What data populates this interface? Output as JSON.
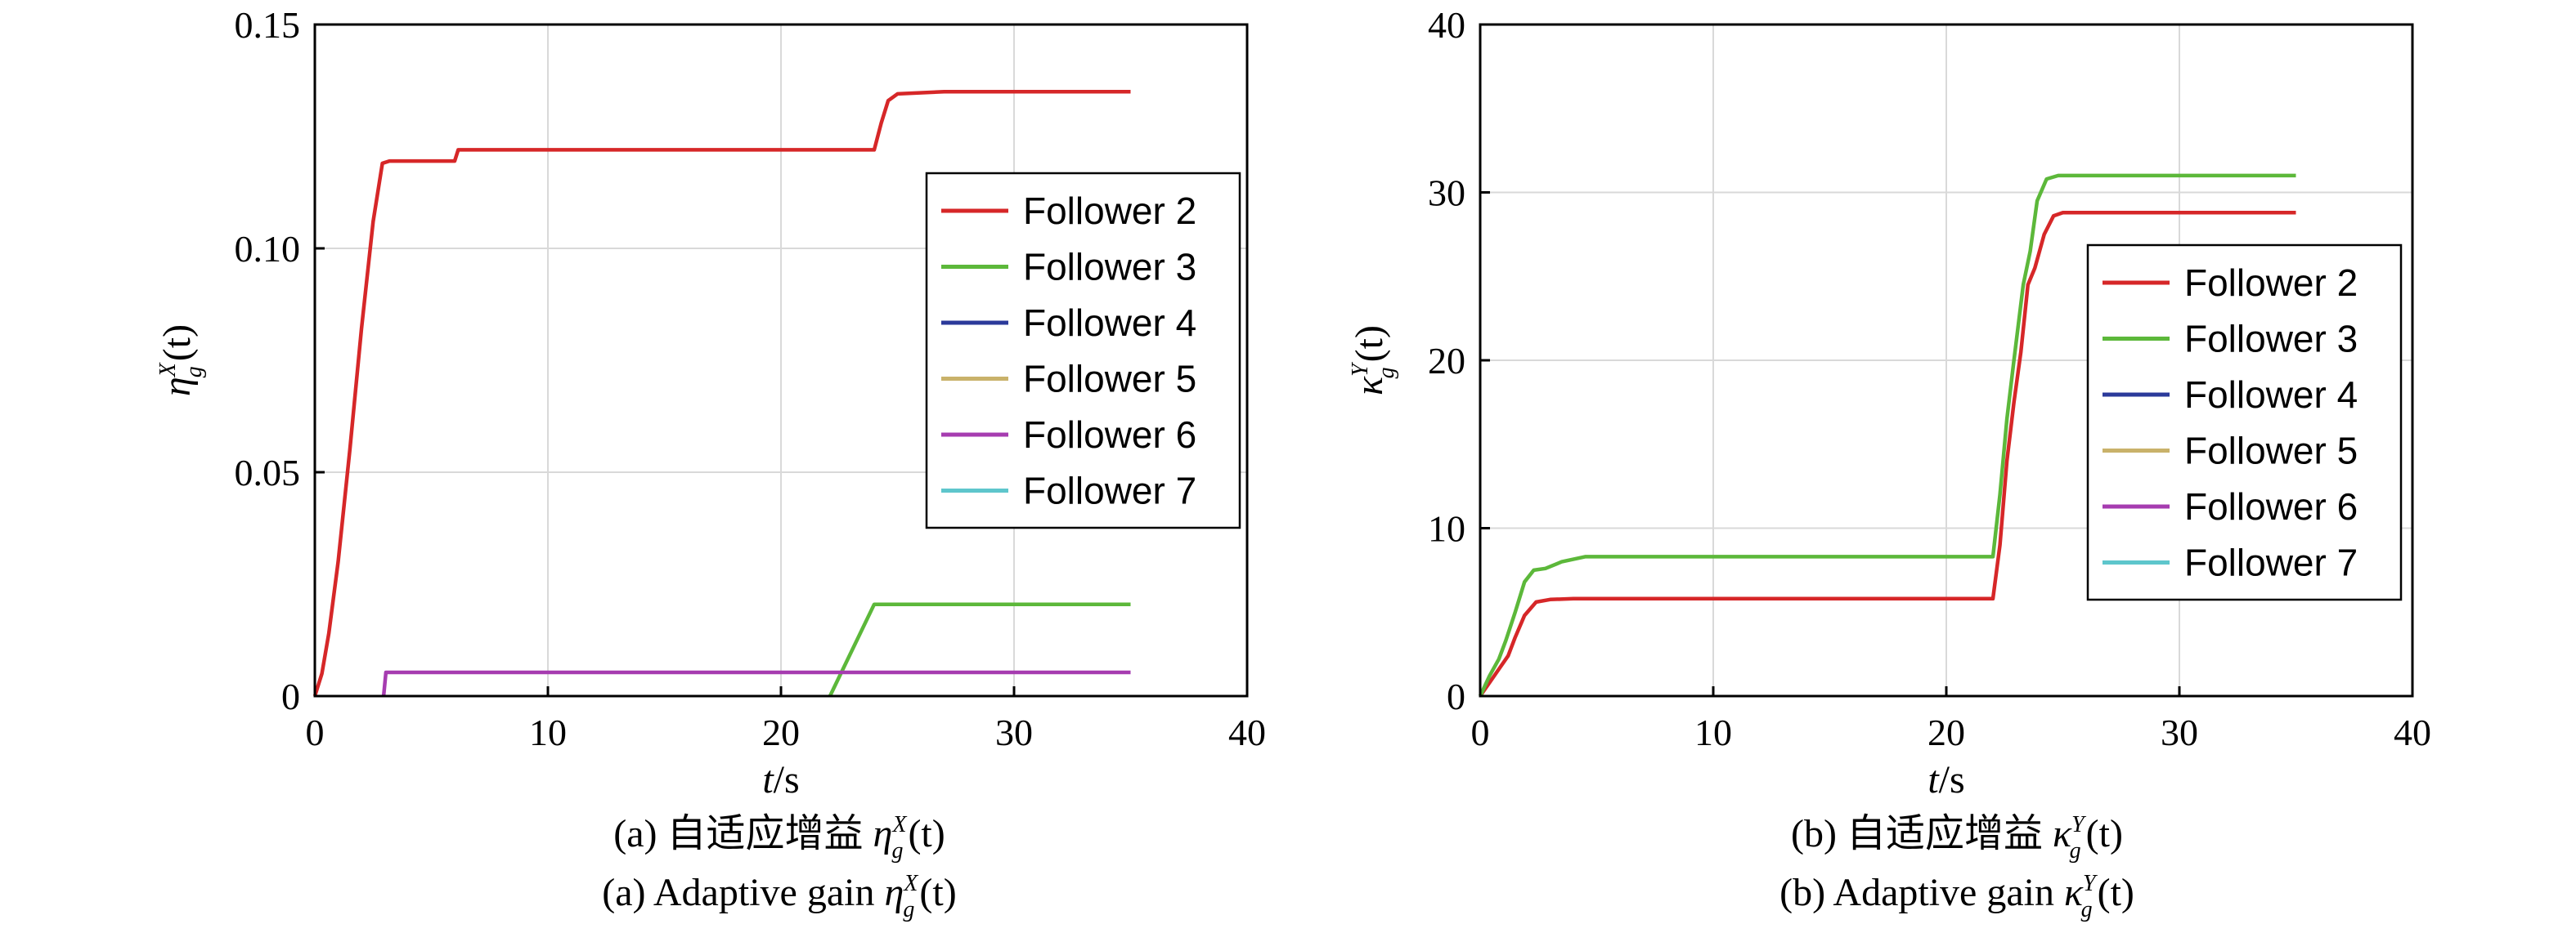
{
  "colors": {
    "follower2": "#d62728",
    "follower3": "#5cb83a",
    "follower4": "#2b3a9a",
    "follower5": "#c9b26a",
    "follower6": "#a63cb0",
    "follower7": "#5ec6cc"
  },
  "xlabel": {
    "var": "t",
    "unit": "/s"
  },
  "chart_data": [
    {
      "type": "line",
      "panel": "a",
      "ylabel": {
        "sym": "η",
        "sup": "X",
        "sub": "g",
        "arg": "(t)"
      },
      "caption_cn": {
        "prefix": "(a) 自适应增益 ",
        "sym": "η",
        "sup": "X",
        "sub": "g",
        "arg": "(t)"
      },
      "caption_en": {
        "prefix": "(a) Adaptive gain ",
        "sym": "η",
        "sup": "X",
        "sub": "g",
        "arg": "(t)"
      },
      "xlim": [
        0,
        40
      ],
      "ylim": [
        0,
        0.15
      ],
      "xticks": [
        "0",
        "10",
        "20",
        "30",
        "40"
      ],
      "yticks": [
        "0",
        "0.05",
        "0.10",
        "0.15"
      ],
      "ytick_values": [
        0,
        0.05,
        0.1,
        0.15
      ],
      "grid": true,
      "legend_position": "right",
      "series": [
        {
          "name": "Follower 2",
          "color_key": "follower2",
          "points": [
            [
              0,
              0
            ],
            [
              0.3,
              0.005
            ],
            [
              0.6,
              0.014
            ],
            [
              1,
              0.03
            ],
            [
              1.5,
              0.055
            ],
            [
              2,
              0.082
            ],
            [
              2.5,
              0.106
            ],
            [
              2.9,
              0.119
            ],
            [
              3.2,
              0.1195
            ],
            [
              6,
              0.1195
            ],
            [
              6.15,
              0.122
            ],
            [
              24,
              0.122
            ],
            [
              24.3,
              0.128
            ],
            [
              24.6,
              0.133
            ],
            [
              25,
              0.1345
            ],
            [
              27,
              0.135
            ],
            [
              35,
              0.135
            ]
          ]
        },
        {
          "name": "Follower 3",
          "color_key": "follower3",
          "points": [
            [
              22.1,
              0
            ],
            [
              24,
              0.0205
            ],
            [
              35,
              0.0205
            ]
          ]
        },
        {
          "name": "Follower 4",
          "color_key": "follower4",
          "points": []
        },
        {
          "name": "Follower 5",
          "color_key": "follower5",
          "points": []
        },
        {
          "name": "Follower 6",
          "color_key": "follower6",
          "points": [
            [
              2.95,
              0
            ],
            [
              3.05,
              0.0053
            ],
            [
              35,
              0.0053
            ]
          ]
        },
        {
          "name": "Follower 7",
          "color_key": "follower7",
          "points": []
        }
      ]
    },
    {
      "type": "line",
      "panel": "b",
      "ylabel": {
        "sym": "κ",
        "sup": "Y",
        "sub": "g",
        "arg": "(t)"
      },
      "caption_cn": {
        "prefix": "(b) 自适应增益 ",
        "sym": "κ",
        "sup": "Y",
        "sub": "g",
        "arg": "(t)"
      },
      "caption_en": {
        "prefix": "(b) Adaptive gain ",
        "sym": "κ",
        "sup": "Y",
        "sub": "g",
        "arg": "(t)"
      },
      "xlim": [
        0,
        40
      ],
      "ylim": [
        0,
        40
      ],
      "xticks": [
        "0",
        "10",
        "20",
        "30",
        "40"
      ],
      "yticks": [
        "0",
        "10",
        "20",
        "30",
        "40"
      ],
      "ytick_values": [
        0,
        10,
        20,
        30,
        40
      ],
      "grid": true,
      "legend_position": "right",
      "series": [
        {
          "name": "Follower 2",
          "color_key": "follower2",
          "points": [
            [
              0,
              0
            ],
            [
              0.4,
              0.8
            ],
            [
              0.8,
              1.6
            ],
            [
              1.2,
              2.4
            ],
            [
              1.5,
              3.5
            ],
            [
              1.9,
              4.8
            ],
            [
              2.4,
              5.6
            ],
            [
              3,
              5.75
            ],
            [
              4,
              5.8
            ],
            [
              22,
              5.8
            ],
            [
              22.3,
              9
            ],
            [
              22.6,
              14
            ],
            [
              22.9,
              17.5
            ],
            [
              23.2,
              20.5
            ],
            [
              23.5,
              24.5
            ],
            [
              23.8,
              25.5
            ],
            [
              24.2,
              27.5
            ],
            [
              24.6,
              28.6
            ],
            [
              25,
              28.8
            ],
            [
              35,
              28.8
            ]
          ]
        },
        {
          "name": "Follower 3",
          "color_key": "follower3",
          "points": [
            [
              0,
              0
            ],
            [
              0.4,
              1.2
            ],
            [
              0.8,
              2.2
            ],
            [
              1.1,
              3.3
            ],
            [
              1.5,
              5
            ],
            [
              1.9,
              6.8
            ],
            [
              2.3,
              7.5
            ],
            [
              2.8,
              7.6
            ],
            [
              3.5,
              8
            ],
            [
              4.5,
              8.3
            ],
            [
              22,
              8.3
            ],
            [
              22.3,
              12
            ],
            [
              22.6,
              16.5
            ],
            [
              22.9,
              20
            ],
            [
              23.3,
              24.5
            ],
            [
              23.6,
              26.5
            ],
            [
              23.9,
              29.5
            ],
            [
              24.3,
              30.8
            ],
            [
              24.8,
              31
            ],
            [
              35,
              31
            ]
          ]
        },
        {
          "name": "Follower 4",
          "color_key": "follower4",
          "points": []
        },
        {
          "name": "Follower 5",
          "color_key": "follower5",
          "points": []
        },
        {
          "name": "Follower 6",
          "color_key": "follower6",
          "points": []
        },
        {
          "name": "Follower 7",
          "color_key": "follower7",
          "points": []
        }
      ]
    }
  ]
}
